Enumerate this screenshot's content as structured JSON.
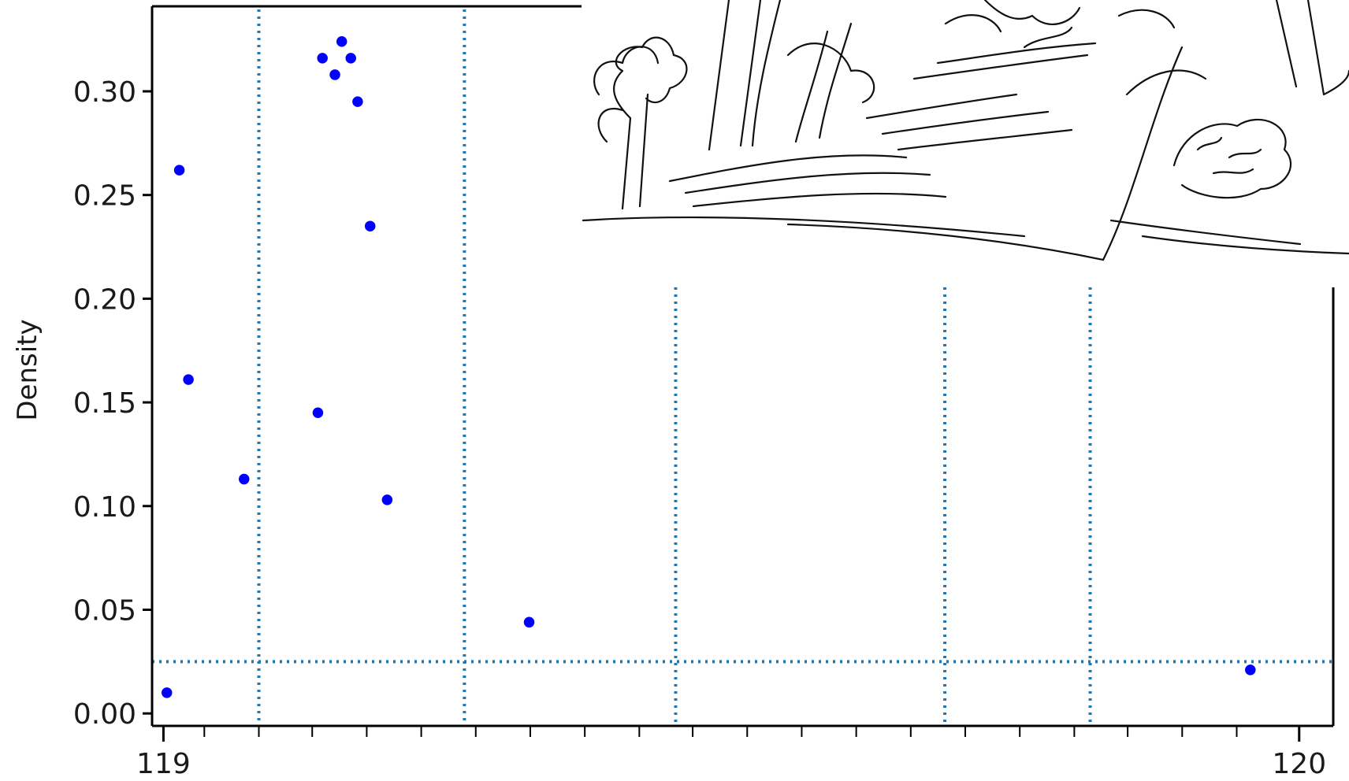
{
  "chart_data": {
    "type": "scatter",
    "title": "",
    "xlabel": "",
    "ylabel": "Density",
    "xlim": [
      118.99,
      120.03
    ],
    "ylim": [
      -0.006,
      0.341
    ],
    "x_ticks": [
      119,
      120
    ],
    "x_tick_labels": [
      "119",
      "120"
    ],
    "y_ticks": [
      0.0,
      0.05,
      0.1,
      0.15,
      0.2,
      0.25,
      0.3
    ],
    "y_tick_labels": [
      "0.00",
      "0.05",
      "0.10",
      "0.15",
      "0.20",
      "0.25",
      "0.30"
    ],
    "x_minor_ticks": [
      119.036,
      119.084,
      119.131,
      119.179,
      119.227,
      119.275,
      119.323,
      119.371,
      119.419,
      119.466,
      119.514,
      119.562,
      119.61,
      119.658,
      119.706,
      119.754,
      119.802,
      119.849,
      119.897,
      119.945
    ],
    "reference_lines": {
      "vertical_x": [
        119.084,
        119.265,
        119.451,
        119.688,
        119.816
      ],
      "horizontal_y": [
        0.025
      ],
      "style": "dotted",
      "color": "#1f77b4"
    },
    "points": [
      {
        "x": 119.003,
        "y": 0.01
      },
      {
        "x": 119.014,
        "y": 0.262
      },
      {
        "x": 119.022,
        "y": 0.161
      },
      {
        "x": 119.071,
        "y": 0.113
      },
      {
        "x": 119.136,
        "y": 0.145
      },
      {
        "x": 119.14,
        "y": 0.316
      },
      {
        "x": 119.151,
        "y": 0.308
      },
      {
        "x": 119.157,
        "y": 0.324
      },
      {
        "x": 119.165,
        "y": 0.316
      },
      {
        "x": 119.171,
        "y": 0.295
      },
      {
        "x": 119.182,
        "y": 0.235
      },
      {
        "x": 119.197,
        "y": 0.103
      },
      {
        "x": 119.322,
        "y": 0.044
      },
      {
        "x": 119.957,
        "y": 0.021
      }
    ],
    "point_color": "#0000ff",
    "grid": false,
    "legend": false
  },
  "inset": {
    "description_icon": "pencil-sketch-forest-path-image"
  }
}
